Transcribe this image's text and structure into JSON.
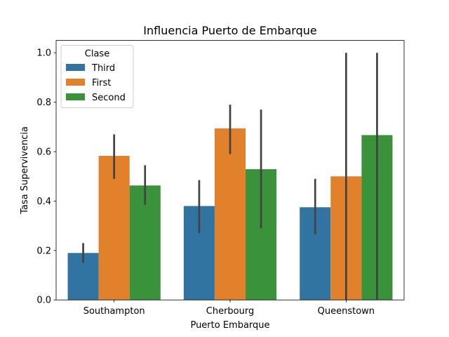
{
  "chart_data": {
    "type": "bar",
    "title": "Influencia Puerto de Embarque",
    "xlabel": "Puerto Embarque",
    "ylabel": "Tasa Supervivencia",
    "categories": [
      "Southampton",
      "Cherbourg",
      "Queenstown"
    ],
    "ylim": [
      0,
      1.05
    ],
    "yticks": [
      0.0,
      0.2,
      0.4,
      0.6,
      0.8,
      1.0
    ],
    "ytick_labels": [
      "0.0",
      "0.2",
      "0.4",
      "0.6",
      "0.8",
      "1.0"
    ],
    "grid": false,
    "legend": {
      "title": "Clase",
      "placement": "top-left"
    },
    "series": [
      {
        "name": "Third",
        "color": "#3274a1",
        "values": [
          0.19,
          0.38,
          0.375
        ],
        "ci": [
          [
            0.15,
            0.23
          ],
          [
            0.27,
            0.485
          ],
          [
            0.265,
            0.49
          ]
        ]
      },
      {
        "name": "First",
        "color": "#e1812c",
        "values": [
          0.583,
          0.694,
          0.5
        ],
        "ci": [
          [
            0.49,
            0.67
          ],
          [
            0.59,
            0.79
          ],
          [
            0.0,
            1.0
          ]
        ]
      },
      {
        "name": "Second",
        "color": "#3a923a",
        "values": [
          0.463,
          0.529,
          0.667
        ],
        "ci": [
          [
            0.385,
            0.545
          ],
          [
            0.29,
            0.77
          ],
          [
            0.0,
            1.0
          ]
        ]
      }
    ]
  }
}
